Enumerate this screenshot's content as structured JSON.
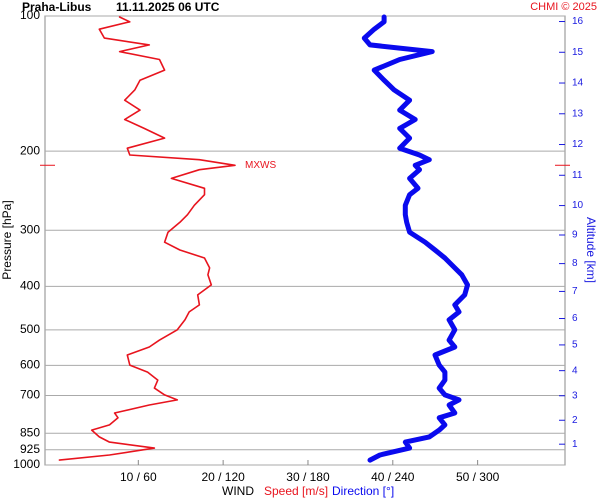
{
  "chart_data": {
    "type": "sounding",
    "title": "Praha-Libus",
    "subtitle": "11.11.2025 06 UTC",
    "credit": "CHMI © 2025",
    "y_label": "Pressure [hPa]",
    "y2_label": "Altitude [km]",
    "x_label": "WIND",
    "y": [
      975,
      950,
      917,
      889,
      866,
      836,
      814,
      785,
      766,
      735,
      716,
      698,
      674,
      647,
      621,
      599,
      569,
      546,
      527,
      500,
      475,
      456,
      440,
      418,
      397,
      377,
      364,
      346,
      332,
      319,
      303,
      288,
      277,
      264,
      250,
      242,
      230,
      220,
      215,
      209,
      204,
      197,
      187,
      178,
      170,
      162,
      154,
      146,
      139,
      132,
      125,
      120,
      116,
      112,
      107,
      103,
      100.5
    ],
    "series": [
      {
        "name": "Speed [m/s]",
        "color": "#e8141e",
        "axis": "x",
        "values": [
          0.7,
          6.6,
          11.9,
          6.6,
          5.4,
          4.5,
          6.6,
          7.6,
          7.2,
          11.3,
          14.6,
          13.1,
          11.9,
          12.3,
          11.1,
          9.0,
          8.7,
          11.3,
          12.5,
          14.6,
          15.5,
          16.0,
          17.2,
          17.0,
          18.6,
          18.2,
          18.4,
          17.8,
          14.9,
          13.1,
          13.5,
          14.9,
          15.8,
          16.6,
          17.8,
          17.8,
          13.9,
          17.2,
          21.4,
          17.2,
          9.0,
          8.7,
          13.1,
          10.7,
          8.4,
          10.2,
          8.4,
          9.6,
          10.2,
          13.1,
          12.5,
          7.8,
          11.3,
          6.0,
          5.4,
          9.0,
          7.8
        ]
      },
      {
        "name": "Direction [°]",
        "color": "#0a0aee",
        "axis": "x2",
        "values": [
          224,
          231,
          252,
          249,
          266,
          273,
          277,
          273,
          284,
          280,
          287,
          277,
          273,
          277,
          277,
          273,
          270,
          284,
          280,
          284,
          280,
          287,
          284,
          291,
          293,
          289,
          284,
          277,
          270,
          263,
          252,
          250,
          249,
          249,
          252,
          258,
          252,
          259,
          256,
          266,
          259,
          245,
          252,
          245,
          256,
          245,
          252,
          241,
          234,
          227,
          245,
          268,
          224,
          220,
          227,
          234,
          234
        ]
      }
    ],
    "annotation": {
      "text": "MXWS",
      "y": 215,
      "x": 21.4
    },
    "xlim": [
      -1,
      60.3
    ],
    "x2lim": [
      -6,
      362
    ],
    "xticks": [
      {
        "value": 10,
        "label": "10 / 60"
      },
      {
        "value": 20,
        "label": "20 / 120"
      },
      {
        "value": 30,
        "label": "30 / 180"
      },
      {
        "value": 40,
        "label": "40 / 240"
      },
      {
        "value": 50,
        "label": "50 / 300"
      }
    ],
    "ylim": [
      1000,
      100
    ],
    "log_y": true,
    "yticks": [
      100,
      200,
      300,
      400,
      500,
      600,
      700,
      850,
      925,
      1000
    ],
    "y2ticks": [
      1,
      2,
      3,
      4,
      5,
      6,
      7,
      8,
      9,
      10,
      11,
      12,
      13,
      14,
      15,
      16
    ],
    "y2_color": "#1a1ae0",
    "grid": true
  }
}
